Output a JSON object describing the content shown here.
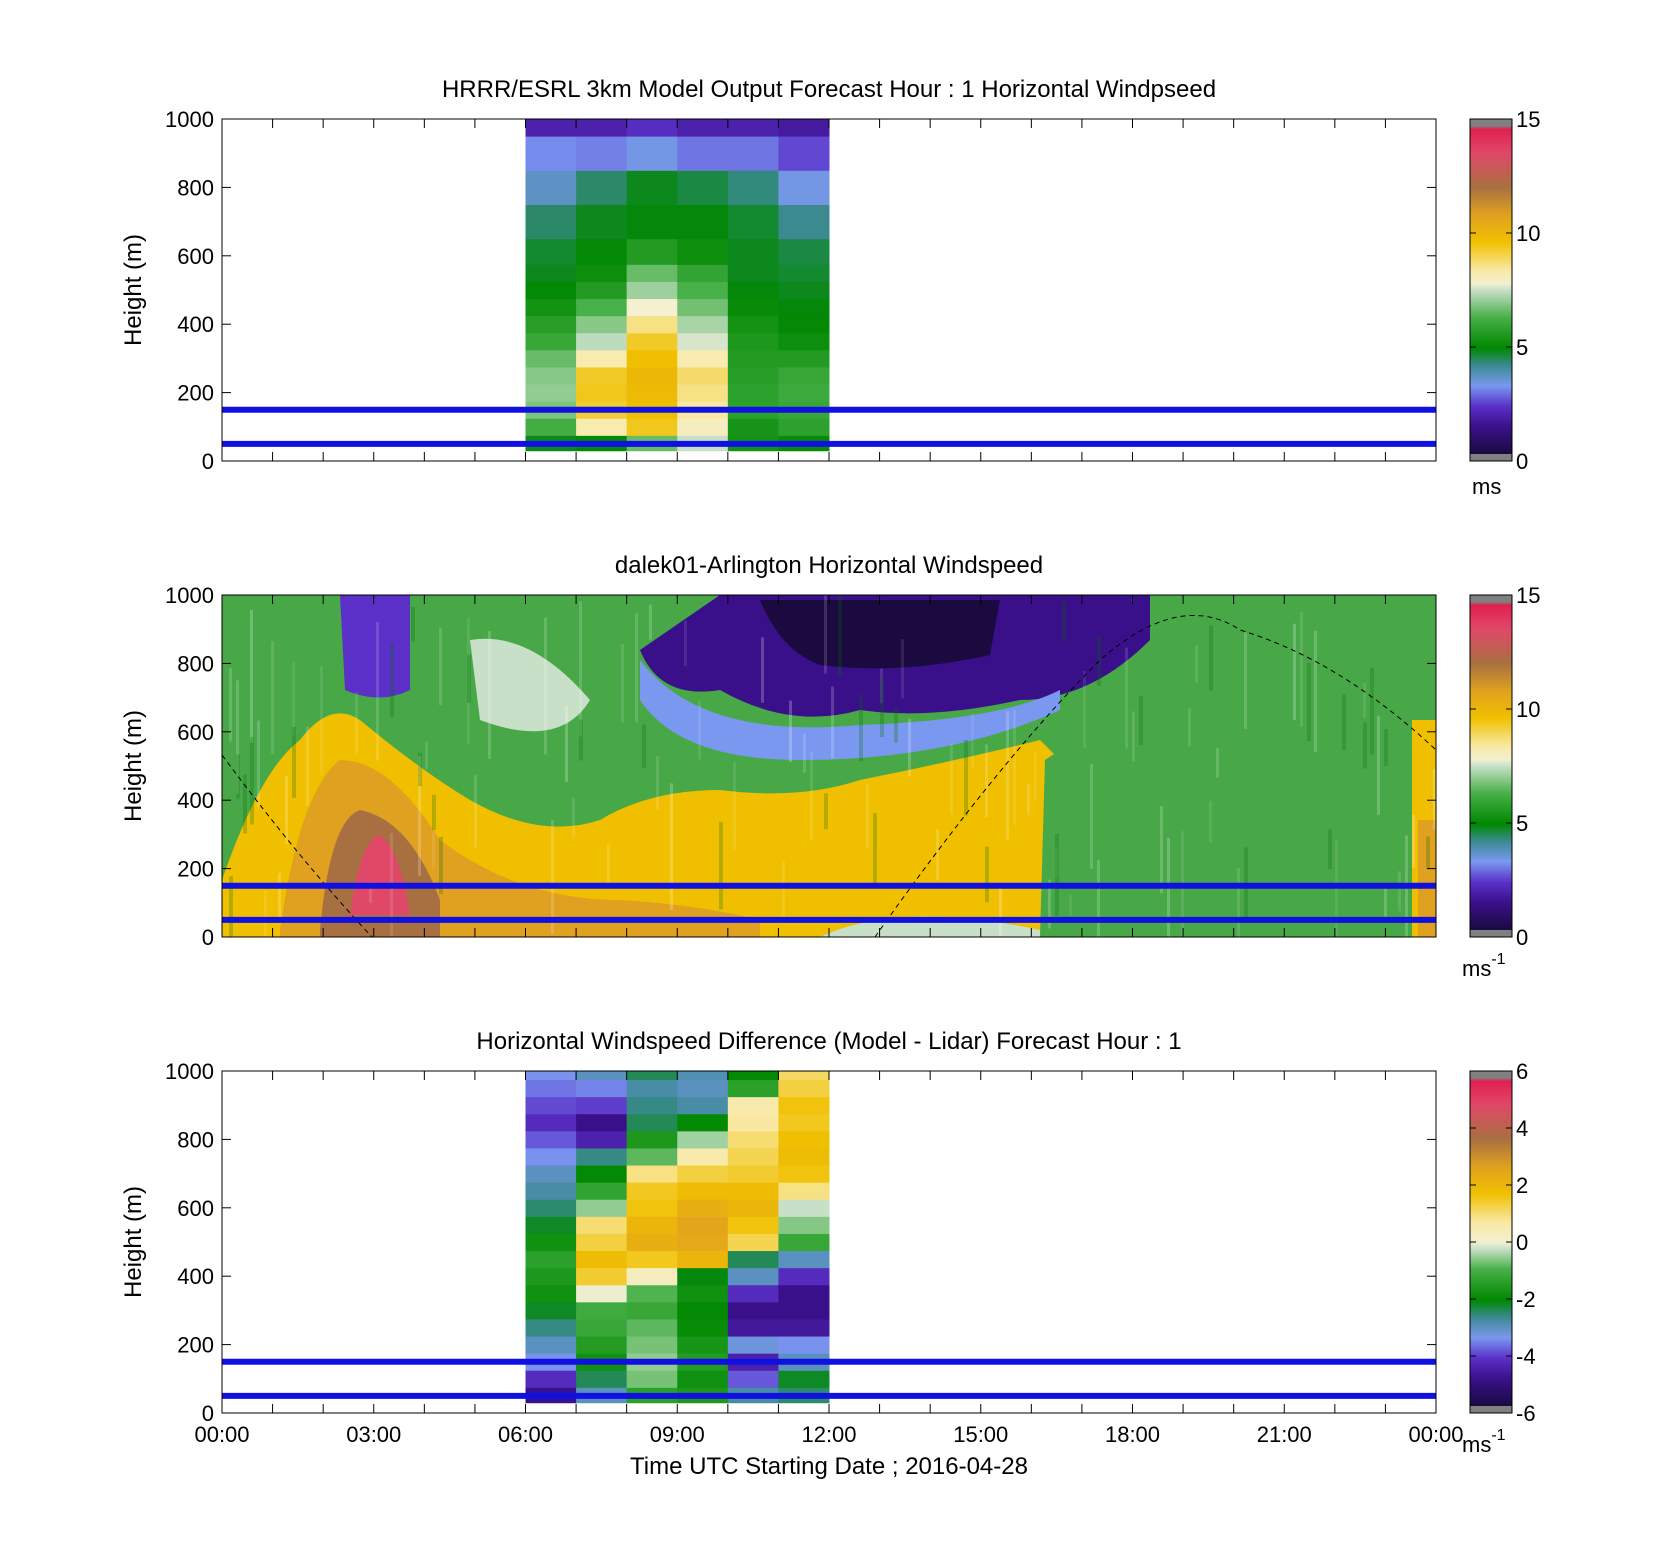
{
  "chart_data": [
    {
      "type": "heatmap",
      "title": "HRRR/ESRL 3km Model Output   Forecast Hour : 1 Horizontal Windpseed",
      "xlabel": "",
      "ylabel": "Height (m)",
      "xlim": [
        "00:00",
        "00:00"
      ],
      "ylim": [
        0,
        1000
      ],
      "yticks": [
        "0",
        "200",
        "400",
        "600",
        "800",
        "1000"
      ],
      "colorbar": {
        "range": [
          0,
          15
        ],
        "ticks": [
          "0",
          "5",
          "10",
          "15"
        ],
        "unit": "ms"
      },
      "columns": [
        "06:00",
        "07:00",
        "08:00",
        "09:00",
        "10:00",
        "11:00"
      ],
      "levels_m": [
        50,
        100,
        150,
        200,
        250,
        300,
        350,
        400,
        450,
        500,
        550,
        600,
        700,
        800,
        900,
        1000
      ],
      "values": [
        [
          4.8,
          5.0,
          6.6,
          7.5,
          5.3,
          5.1
        ],
        [
          6.2,
          8.2,
          9.4,
          8.0,
          5.4,
          5.8
        ],
        [
          6.8,
          9.2,
          9.6,
          8.4,
          5.8,
          6.0
        ],
        [
          7.0,
          9.4,
          9.8,
          8.6,
          5.8,
          6.1
        ],
        [
          6.9,
          9.3,
          9.9,
          8.8,
          5.7,
          6.0
        ],
        [
          6.6,
          8.2,
          9.6,
          8.2,
          5.6,
          5.6
        ],
        [
          6.0,
          7.4,
          9.3,
          7.6,
          5.5,
          5.2
        ],
        [
          5.7,
          6.9,
          8.6,
          7.2,
          5.3,
          5.0
        ],
        [
          5.3,
          6.3,
          7.8,
          6.7,
          5.1,
          4.9
        ],
        [
          5.0,
          5.6,
          7.1,
          6.3,
          4.9,
          4.8
        ],
        [
          4.8,
          5.2,
          6.6,
          5.9,
          4.8,
          4.7
        ],
        [
          4.7,
          5.0,
          5.6,
          5.2,
          4.8,
          4.6
        ],
        [
          4.4,
          4.8,
          4.9,
          4.9,
          4.7,
          4.2
        ],
        [
          3.7,
          4.4,
          4.8,
          4.6,
          4.3,
          3.4
        ],
        [
          3.2,
          3.1,
          3.4,
          3.0,
          3.0,
          2.6
        ],
        [
          2.0,
          2.0,
          2.3,
          2.0,
          2.0,
          1.8
        ]
      ],
      "horizontal_lines_m": [
        50,
        150
      ],
      "line_color": "#1010e0"
    },
    {
      "type": "heatmap",
      "title": "dalek01-Arlington  Horizontal Windspeed",
      "xlabel": "",
      "ylabel": "Height (m)",
      "xlim": [
        "00:00",
        "00:00"
      ],
      "ylim": [
        0,
        1000
      ],
      "yticks": [
        "0",
        "200",
        "400",
        "600",
        "800",
        "1000"
      ],
      "colorbar": {
        "range": [
          0,
          15
        ],
        "ticks": [
          "0",
          "5",
          "10",
          "15"
        ],
        "unit": "ms",
        "unit_exp": "-1"
      },
      "horizontal_lines_m": [
        50,
        150
      ],
      "boundary_layer_curve": "dashed sinusoid: ~530 m at 00:00, 0 m near 03:00 and 12:50, peak ~900 m near 19:50",
      "line_color": "#1010e0"
    },
    {
      "type": "heatmap",
      "title": "Horizontal Windspeed Difference (Model - Lidar) Forecast Hour : 1",
      "xlabel": "Time UTC  Starting Date ; 2016-04-28",
      "ylabel": "Height (m)",
      "xlim": [
        "00:00",
        "00:00"
      ],
      "ylim": [
        0,
        1000
      ],
      "xticks": [
        "00:00",
        "03:00",
        "06:00",
        "09:00",
        "12:00",
        "15:00",
        "18:00",
        "21:00",
        "00:00"
      ],
      "yticks": [
        "0",
        "200",
        "400",
        "600",
        "800",
        "1000"
      ],
      "colorbar": {
        "range": [
          -6,
          6
        ],
        "ticks": [
          "-6",
          "-4",
          "-2",
          "0",
          "2",
          "4",
          "6"
        ],
        "unit": "ms",
        "unit_exp": "-1"
      },
      "columns": [
        "06:00",
        "07:00",
        "08:00",
        "09:00",
        "10:00",
        "11:00"
      ],
      "levels_m": [
        50,
        100,
        150,
        200,
        250,
        300,
        350,
        400,
        450,
        500,
        550,
        600,
        650,
        700,
        750,
        800,
        850,
        900,
        950,
        1000
      ],
      "values": [
        [
          -5.0,
          -3.0,
          -1.4,
          -1.6,
          -2.8,
          -2.5
        ],
        [
          -4.2,
          -2.4,
          -0.6,
          -1.8,
          -3.8,
          -2.2
        ],
        [
          -3.4,
          -1.8,
          -0.4,
          -1.5,
          -4.4,
          -3.0
        ],
        [
          -3.0,
          -1.5,
          -0.6,
          -1.7,
          -3.2,
          -3.4
        ],
        [
          -2.6,
          -1.2,
          -0.8,
          -1.9,
          -4.6,
          -4.6
        ],
        [
          -2.2,
          -1.1,
          -1.2,
          -2.0,
          -4.8,
          -5.2
        ],
        [
          -1.8,
          0.2,
          -0.9,
          -1.8,
          -4.2,
          -4.8
        ],
        [
          -1.6,
          1.4,
          0.4,
          -2.1,
          -3.0,
          -4.2
        ],
        [
          -1.4,
          1.8,
          1.5,
          2.0,
          -2.4,
          -3.0
        ],
        [
          -1.8,
          1.3,
          2.2,
          2.4,
          1.2,
          -1.2
        ],
        [
          -2.2,
          1.0,
          2.0,
          2.5,
          1.6,
          -0.5
        ],
        [
          -2.5,
          -0.4,
          1.6,
          2.2,
          2.0,
          0.0
        ],
        [
          -2.8,
          -1.3,
          1.5,
          1.8,
          1.8,
          0.9
        ],
        [
          -3.0,
          -2.0,
          0.9,
          1.3,
          1.4,
          1.6
        ],
        [
          -3.4,
          -2.6,
          -0.8,
          0.6,
          1.2,
          1.8
        ],
        [
          -3.8,
          -4.4,
          -1.6,
          -0.3,
          1.0,
          1.7
        ],
        [
          -4.2,
          -4.8,
          -2.4,
          -2.0,
          0.7,
          1.5
        ],
        [
          -3.9,
          -4.0,
          -2.6,
          -2.8,
          0.6,
          1.6
        ],
        [
          -3.6,
          -3.5,
          -2.8,
          -3.0,
          -1.4,
          1.3
        ],
        [
          -3.4,
          -3.0,
          -2.4,
          -2.9,
          -2.0,
          1.1
        ]
      ],
      "horizontal_lines_m": [
        50,
        150
      ],
      "line_color": "#1010e0"
    }
  ]
}
